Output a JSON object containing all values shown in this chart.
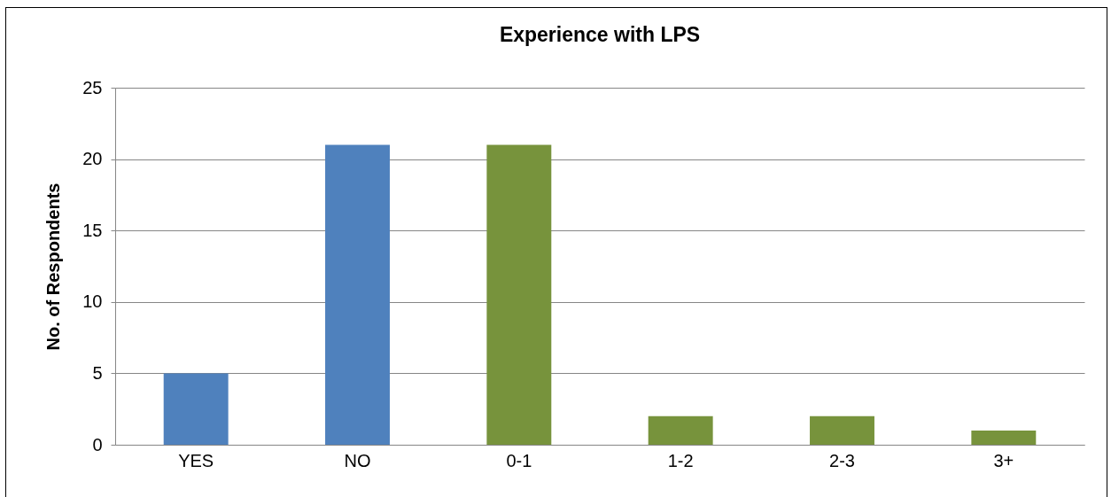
{
  "chart_data": {
    "type": "bar",
    "title": "Experience with LPS",
    "ylabel": "No. of Respondents",
    "categories": [
      "YES",
      "NO",
      "0-1",
      "1-2",
      "2-3",
      "3+"
    ],
    "values": [
      5,
      21,
      21,
      2,
      2,
      1
    ],
    "colors": [
      "#4f81bd",
      "#4f81bd",
      "#77933c",
      "#77933c",
      "#77933c",
      "#77933c"
    ],
    "ylim": [
      0,
      25
    ],
    "yticks": [
      0,
      5,
      10,
      15,
      20,
      25
    ],
    "grid": "y"
  }
}
